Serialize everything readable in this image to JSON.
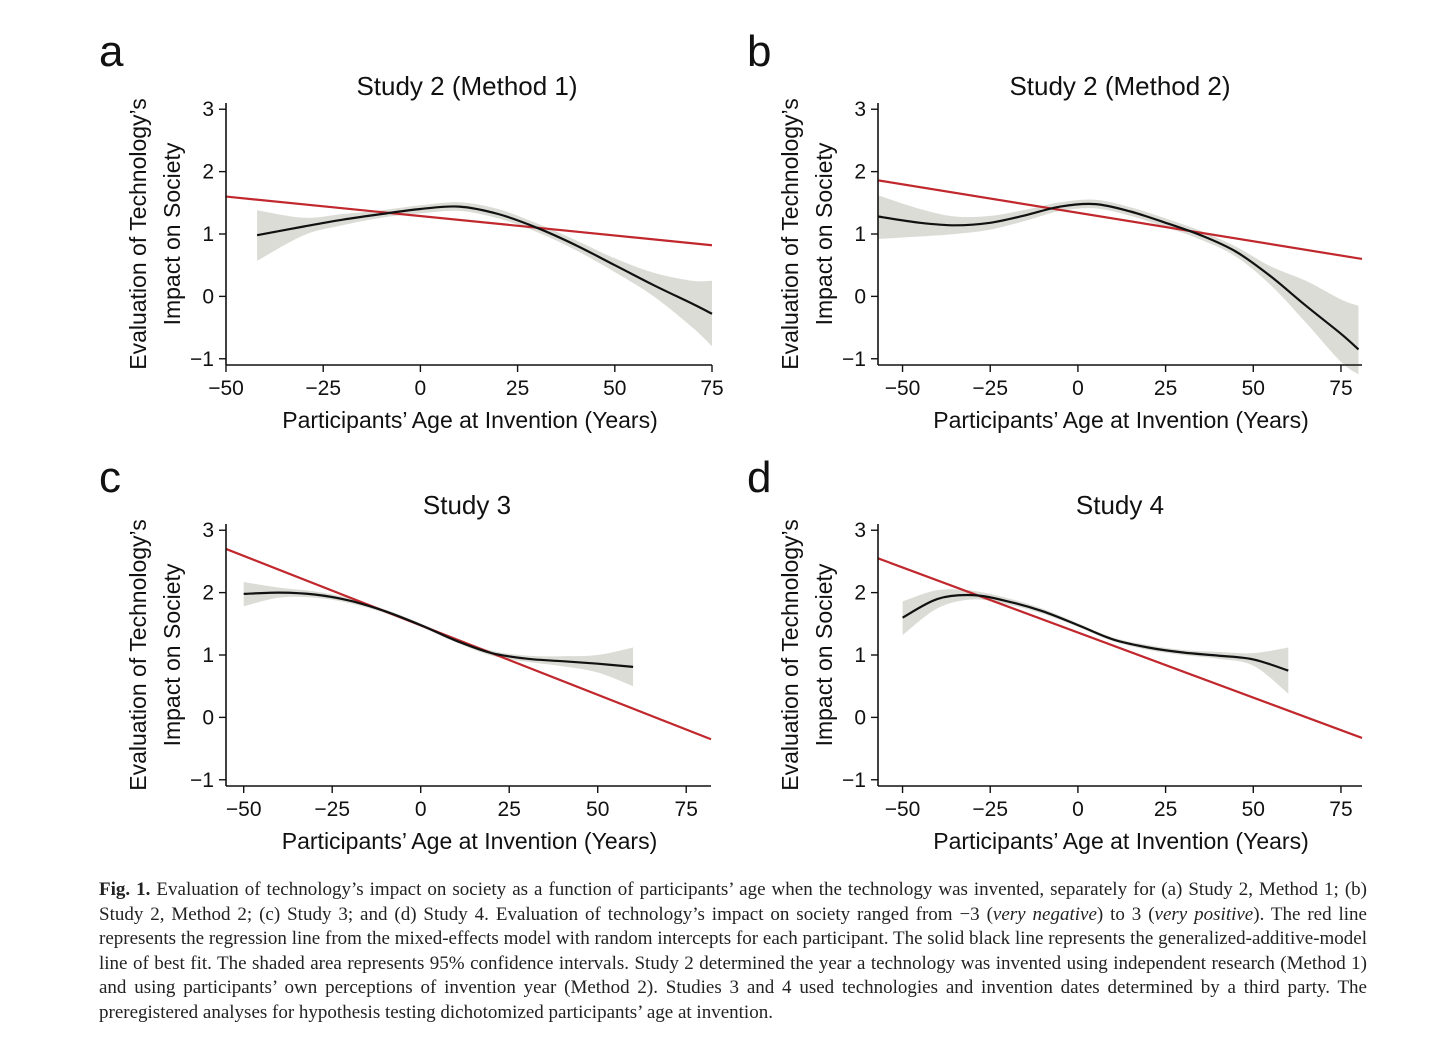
{
  "chart_data": [
    {
      "type": "line",
      "panel": "a",
      "title": "Study 2 (Method 1)",
      "xlabel": "Participants’ Age at Invention (Years)",
      "ylabel": [
        "Evaluation of Technology’s",
        "Impact on Society"
      ],
      "xlim": [
        -50,
        75
      ],
      "ylim": [
        -1.1,
        3.1
      ],
      "xticks": [
        -50,
        -25,
        0,
        25,
        50,
        75
      ],
      "yticks": [
        -1,
        0,
        1,
        2,
        3
      ],
      "regression_line": {
        "name": "Mixed-effects regression",
        "x": [
          -50,
          75
        ],
        "y": [
          1.6,
          0.82
        ]
      },
      "gam_line": {
        "name": "GAM best fit",
        "x": [
          -42,
          -30,
          -20,
          -10,
          0,
          10,
          20,
          30,
          40,
          50,
          60,
          70,
          75
        ],
        "y": [
          0.98,
          1.12,
          1.23,
          1.32,
          1.4,
          1.44,
          1.32,
          1.1,
          0.82,
          0.5,
          0.18,
          -0.12,
          -0.28
        ]
      },
      "ci_band": {
        "x": [
          -42,
          -30,
          -20,
          -10,
          0,
          10,
          20,
          30,
          40,
          50,
          60,
          70,
          75
        ],
        "lower": [
          0.57,
          0.98,
          1.14,
          1.26,
          1.33,
          1.37,
          1.25,
          1.03,
          0.74,
          0.39,
          0.0,
          -0.5,
          -0.8
        ],
        "upper": [
          1.38,
          1.26,
          1.32,
          1.38,
          1.46,
          1.51,
          1.4,
          1.17,
          0.9,
          0.61,
          0.38,
          0.25,
          0.25
        ]
      }
    },
    {
      "type": "line",
      "panel": "b",
      "title": "Study 2 (Method 2)",
      "xlabel": "Participants’ Age at Invention (Years)",
      "ylabel": [
        "Evaluation of Technology’s",
        "Impact on Society"
      ],
      "xlim": [
        -57,
        81
      ],
      "ylim": [
        -1.1,
        3.1
      ],
      "xticks": [
        -50,
        -25,
        0,
        25,
        50,
        75
      ],
      "yticks": [
        -1,
        0,
        1,
        2,
        3
      ],
      "regression_line": {
        "name": "Mixed-effects regression",
        "x": [
          -57,
          81
        ],
        "y": [
          1.86,
          0.6
        ]
      },
      "gam_line": {
        "name": "GAM best fit",
        "x": [
          -57,
          -45,
          -35,
          -25,
          -15,
          -5,
          5,
          15,
          25,
          35,
          45,
          55,
          65,
          75,
          80
        ],
        "y": [
          1.28,
          1.18,
          1.14,
          1.18,
          1.3,
          1.44,
          1.48,
          1.36,
          1.18,
          0.98,
          0.72,
          0.32,
          -0.15,
          -0.6,
          -0.85
        ]
      },
      "ci_band": {
        "x": [
          -57,
          -45,
          -35,
          -25,
          -15,
          -5,
          5,
          15,
          25,
          35,
          45,
          55,
          65,
          75,
          80
        ],
        "lower": [
          0.92,
          0.96,
          1.0,
          1.07,
          1.21,
          1.37,
          1.41,
          1.29,
          1.11,
          0.91,
          0.64,
          0.18,
          -0.42,
          -1.05,
          -1.25
        ],
        "upper": [
          1.62,
          1.4,
          1.28,
          1.29,
          1.39,
          1.51,
          1.55,
          1.43,
          1.25,
          1.05,
          0.8,
          0.48,
          0.25,
          -0.05,
          -0.15
        ]
      }
    },
    {
      "type": "line",
      "panel": "c",
      "title": "Study 3",
      "xlabel": "Participants’ Age at Invention (Years)",
      "ylabel": [
        "Evaluation of Technology’s",
        "Impact on Society"
      ],
      "xlim": [
        -55,
        82
      ],
      "ylim": [
        -1.1,
        3.1
      ],
      "xticks": [
        -50,
        -25,
        0,
        25,
        50,
        75
      ],
      "yticks": [
        -1,
        0,
        1,
        2,
        3
      ],
      "regression_line": {
        "name": "Mixed-effects regression",
        "x": [
          -55,
          82
        ],
        "y": [
          2.7,
          -0.35
        ]
      },
      "gam_line": {
        "name": "GAM best fit",
        "x": [
          -50,
          -40,
          -30,
          -20,
          -10,
          0,
          10,
          20,
          30,
          40,
          50,
          60
        ],
        "y": [
          1.98,
          2.0,
          1.97,
          1.87,
          1.7,
          1.48,
          1.23,
          1.03,
          0.94,
          0.9,
          0.86,
          0.81
        ]
      },
      "ci_band": {
        "x": [
          -50,
          -40,
          -30,
          -20,
          -10,
          0,
          10,
          20,
          30,
          40,
          50,
          60
        ],
        "lower": [
          1.78,
          1.92,
          1.92,
          1.83,
          1.67,
          1.45,
          1.2,
          0.99,
          0.89,
          0.82,
          0.72,
          0.5
        ],
        "upper": [
          2.17,
          2.08,
          2.02,
          1.91,
          1.73,
          1.51,
          1.26,
          1.07,
          0.99,
          0.98,
          1.0,
          1.12
        ]
      }
    },
    {
      "type": "line",
      "panel": "d",
      "title": "Study 4",
      "xlabel": "Participants’ Age at Invention (Years)",
      "ylabel": [
        "Evaluation of Technology’s",
        "Impact on Society"
      ],
      "xlim": [
        -57,
        81
      ],
      "ylim": [
        -1.1,
        3.1
      ],
      "xticks": [
        -50,
        -25,
        0,
        25,
        50,
        75
      ],
      "yticks": [
        -1,
        0,
        1,
        2,
        3
      ],
      "regression_line": {
        "name": "Mixed-effects regression",
        "x": [
          -57,
          81
        ],
        "y": [
          2.55,
          -0.33
        ]
      },
      "gam_line": {
        "name": "GAM best fit",
        "x": [
          -50,
          -40,
          -30,
          -20,
          -10,
          0,
          10,
          20,
          30,
          40,
          50,
          60
        ],
        "y": [
          1.6,
          1.9,
          1.96,
          1.86,
          1.7,
          1.48,
          1.25,
          1.12,
          1.04,
          0.99,
          0.93,
          0.75
        ]
      },
      "ci_band": {
        "x": [
          -50,
          -40,
          -30,
          -20,
          -10,
          0,
          10,
          20,
          30,
          40,
          50,
          60
        ],
        "lower": [
          1.32,
          1.75,
          1.89,
          1.81,
          1.66,
          1.45,
          1.22,
          1.08,
          1.0,
          0.94,
          0.83,
          0.38
        ],
        "upper": [
          1.86,
          2.04,
          2.03,
          1.91,
          1.74,
          1.51,
          1.28,
          1.16,
          1.08,
          1.05,
          1.03,
          1.12
        ]
      }
    }
  ],
  "caption": {
    "label": "Fig. 1.",
    "part1": "Evaluation of technology’s impact on society as a function of participants’ age when the technology was invented, separately for (a) Study 2, Method 1; (b) Study 2, Method 2; (c) Study 3; and (d) Study 4. Evaluation of technology’s impact on society ranged from −3 (",
    "italic1": "very negative",
    "part2": ") to 3 (",
    "italic2": "very positive",
    "part3": "). The red line represents the regression line from the mixed-effects model with random intercepts for each participant. The solid black line represents the generalized-additive-model line of best fit. The shaded area represents 95% confidence intervals. Study 2 determined the year a technology was invented using independent research (Method 1) and using participants’ own perceptions of invention year (Method 2). Studies 3 and 4 used technologies and invention dates determined by a third party. The preregistered analyses for hypothesis testing dichotomized participants’ age at invention."
  },
  "colors": {
    "regression": "#c0282d",
    "gam": "#111111",
    "ci": "#dcdcd6"
  }
}
